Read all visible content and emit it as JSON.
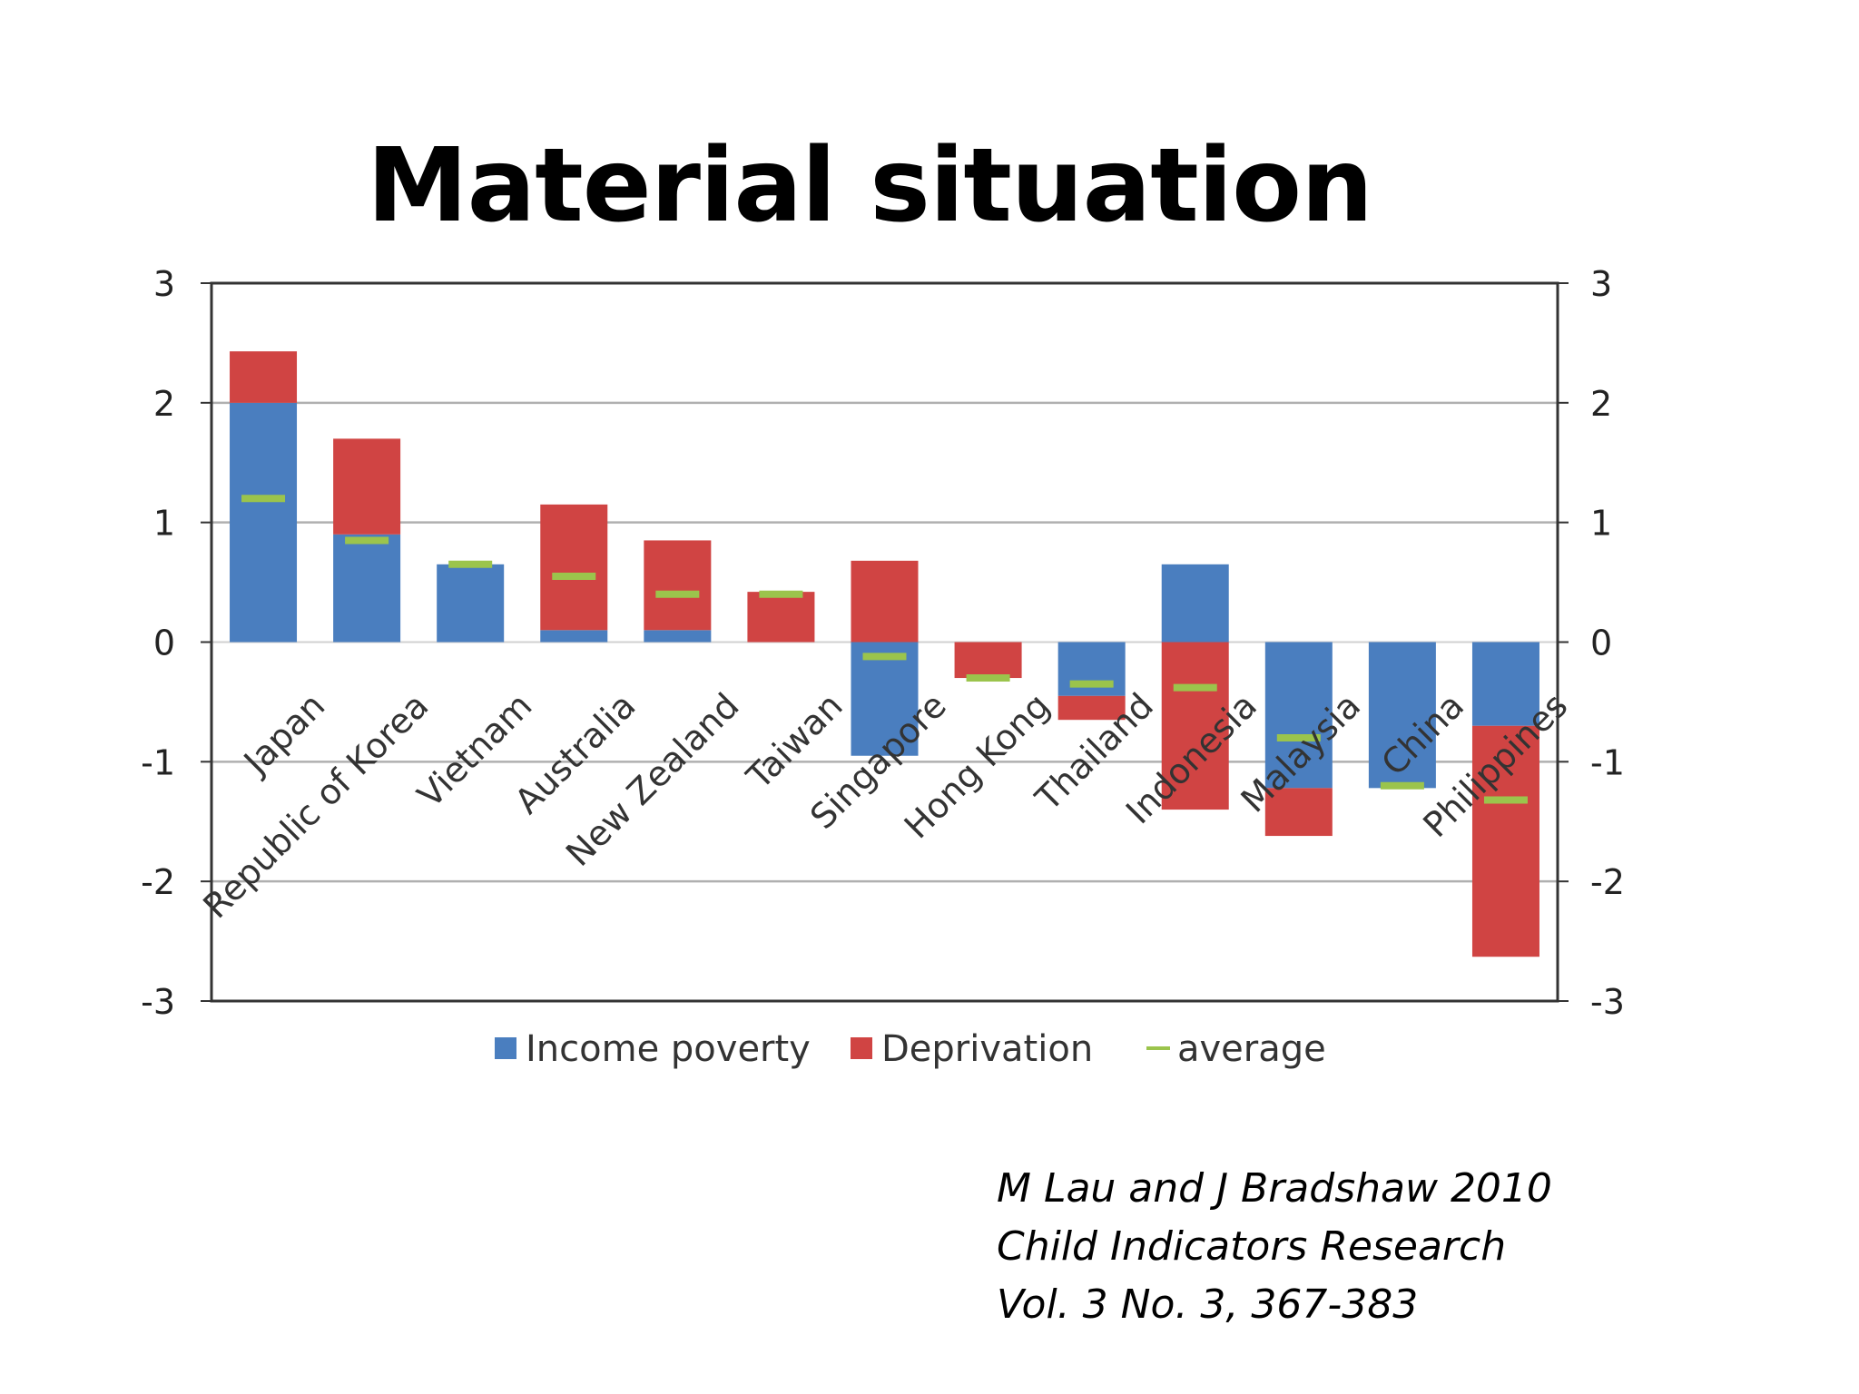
{
  "slide": {
    "title": "Material situation",
    "citation": {
      "line1": "M Lau and J Bradshaw 2010",
      "line2": "Child Indicators Research",
      "line3": "Vol. 3 No. 3, 367-383"
    }
  },
  "chart_data": {
    "type": "bar",
    "stacked": true,
    "categories": [
      "Japan",
      "Republic of Korea",
      "Vietnam",
      "Australia",
      "New Zealand",
      "Taiwan",
      "Singapore",
      "Hong Kong",
      "Thailand",
      "Indonesia",
      "Malaysia",
      "China",
      "Philippines"
    ],
    "series": [
      {
        "name": "Income poverty",
        "color": "#4a7ebf",
        "values": [
          2.0,
          0.9,
          0.65,
          0.1,
          0.1,
          0.0,
          -0.95,
          0.0,
          -0.45,
          0.65,
          -1.22,
          -1.22,
          -0.7
        ]
      },
      {
        "name": "Deprivation",
        "color": "#d04443",
        "values": [
          0.43,
          0.8,
          0.0,
          1.05,
          0.75,
          0.42,
          0.68,
          -0.3,
          -0.2,
          -1.4,
          -0.4,
          0.0,
          -1.93
        ]
      },
      {
        "name": "average",
        "color": "#9bc44c",
        "type": "marker",
        "values": [
          1.2,
          0.85,
          0.65,
          0.55,
          0.4,
          0.4,
          -0.12,
          -0.3,
          -0.35,
          -0.38,
          -0.8,
          -1.2,
          -1.32
        ]
      }
    ],
    "ylim": [
      -3,
      3
    ],
    "yticks": [
      -3,
      -2,
      -1,
      0,
      1,
      2,
      3
    ],
    "y_axis_both_sides": true,
    "grid": true,
    "legend_position": "bottom",
    "title": "",
    "xlabel": "",
    "ylabel": ""
  }
}
